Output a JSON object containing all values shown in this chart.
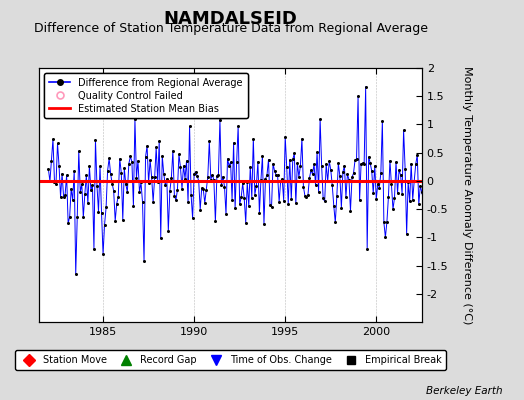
{
  "title": "NAMDALSEID",
  "subtitle": "Difference of Station Temperature Data from Regional Average",
  "ylabel": "Monthly Temperature Anomaly Difference (°C)",
  "xlabel_ticks": [
    1985,
    1990,
    1995,
    2000
  ],
  "ylim": [
    -2.5,
    2.0
  ],
  "yticks": [
    -2.0,
    -1.5,
    -1.0,
    -0.5,
    0.0,
    0.5,
    1.0,
    1.5,
    2.0
  ],
  "xlim": [
    1981.5,
    2002.5
  ],
  "bias_value": 0.0,
  "line_color": "#0000FF",
  "marker_color": "#000000",
  "bias_color": "#FF0000",
  "background_color": "#DCDCDC",
  "plot_bg_color": "#FFFFFF",
  "title_fontsize": 13,
  "subtitle_fontsize": 9,
  "ylabel_fontsize": 8,
  "tick_fontsize": 8,
  "legend1_entries": [
    {
      "label": "Difference from Regional Average"
    },
    {
      "label": "Quality Control Failed"
    },
    {
      "label": "Estimated Station Mean Bias"
    }
  ],
  "legend2_entries": [
    {
      "label": "Station Move",
      "color": "#FF0000",
      "marker": "D"
    },
    {
      "label": "Record Gap",
      "color": "#008000",
      "marker": "^"
    },
    {
      "label": "Time of Obs. Change",
      "color": "#0000FF",
      "marker": "v"
    },
    {
      "label": "Empirical Break",
      "color": "#000000",
      "marker": "s"
    }
  ],
  "watermark": "Berkeley Earth",
  "seed": 42,
  "start_year": 1982.0,
  "n_years": 21
}
